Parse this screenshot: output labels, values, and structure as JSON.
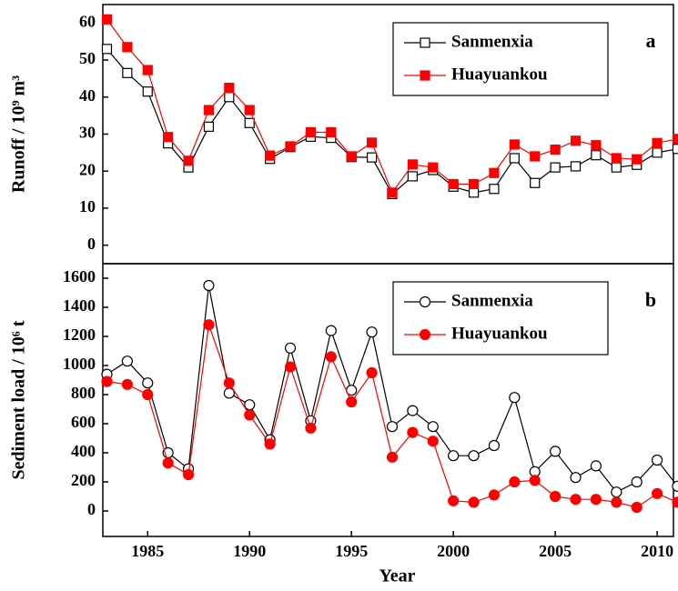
{
  "chart_data": [
    {
      "type": "line",
      "panel_label": "a",
      "y_label": "Runoff / 10⁹ m³",
      "legend": "upper right",
      "x": [
        1983,
        1984,
        1985,
        1986,
        1987,
        1988,
        1989,
        1990,
        1991,
        1992,
        1993,
        1994,
        1995,
        1996,
        1997,
        1998,
        1999,
        2000,
        2001,
        2002,
        2003,
        2004,
        2005,
        2006,
        2007,
        2008,
        2009,
        2010,
        2011
      ],
      "xlim": [
        1982.8,
        2010.8
      ],
      "ylim": [
        -5,
        65
      ],
      "yticks": [
        0,
        10,
        20,
        30,
        40,
        50,
        60
      ],
      "series": [
        {
          "name": "Sanmenxia",
          "color": "#000000",
          "marker": "square",
          "filled": false,
          "values": [
            53,
            46.5,
            41.5,
            27.5,
            21,
            32,
            40,
            33,
            23.3,
            26.5,
            29.3,
            29,
            23.8,
            23.7,
            13.8,
            18.6,
            20.3,
            15.8,
            14.2,
            15.2,
            23.5,
            16.8,
            21,
            21.3,
            24.3,
            21,
            21.7,
            25,
            26
          ]
        },
        {
          "name": "Huayuankou",
          "color": "#ff0000",
          "marker": "square",
          "filled": true,
          "values": [
            61,
            53.5,
            47.3,
            29.2,
            22.8,
            36.5,
            42.5,
            36.5,
            24.2,
            26.7,
            30.5,
            30.5,
            24,
            27.7,
            14.2,
            21.8,
            21,
            16.5,
            16.5,
            19.5,
            27.2,
            24,
            25.8,
            28.2,
            27,
            23.5,
            23.2,
            27.6,
            28.7
          ]
        }
      ]
    },
    {
      "type": "line",
      "panel_label": "b",
      "y_label": "Sediment load / 10⁶ t",
      "x_label": "Year",
      "legend": "upper right",
      "x": [
        1983,
        1984,
        1985,
        1986,
        1987,
        1988,
        1989,
        1990,
        1991,
        1992,
        1993,
        1994,
        1995,
        1996,
        1997,
        1998,
        1999,
        2000,
        2001,
        2002,
        2003,
        2004,
        2005,
        2006,
        2007,
        2008,
        2009,
        2010,
        2011
      ],
      "xlim": [
        1982.8,
        2010.8
      ],
      "xticks": [
        1985,
        1990,
        1995,
        2000,
        2005,
        2010
      ],
      "ylim": [
        -175,
        1700
      ],
      "yticks": [
        0,
        200,
        400,
        600,
        800,
        1000,
        1200,
        1400,
        1600
      ],
      "series": [
        {
          "name": "Sanmenxia",
          "color": "#000000",
          "marker": "circle",
          "filled": false,
          "values": [
            940,
            1030,
            880,
            400,
            290,
            1550,
            810,
            730,
            490,
            1120,
            620,
            1240,
            830,
            1230,
            580,
            690,
            580,
            380,
            380,
            450,
            780,
            270,
            410,
            230,
            310,
            130,
            200,
            350,
            170
          ]
        },
        {
          "name": "Huayuankou",
          "color": "#ff0000",
          "marker": "circle",
          "filled": true,
          "values": [
            890,
            870,
            800,
            330,
            250,
            1280,
            880,
            660,
            460,
            990,
            570,
            1060,
            750,
            950,
            370,
            540,
            480,
            70,
            60,
            110,
            200,
            210,
            100,
            80,
            80,
            60,
            25,
            120,
            60
          ]
        }
      ]
    }
  ]
}
